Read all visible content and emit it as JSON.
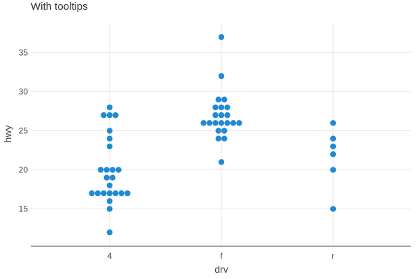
{
  "chart_data": {
    "type": "scatter",
    "title": "With tooltips",
    "xlabel": "drv",
    "ylabel": "hwy",
    "categories": [
      "4",
      "f",
      "r"
    ],
    "ylim": [
      10,
      38
    ],
    "y_ticks": [
      15,
      20,
      25,
      30,
      35
    ],
    "grid": true,
    "point_color": "#1f8ad6",
    "series": [
      {
        "category": "4",
        "y": [
          28,
          27,
          27,
          27,
          25,
          24,
          23,
          20,
          20,
          20,
          20,
          19,
          19,
          18,
          17,
          17,
          17,
          17,
          17,
          17,
          17,
          16,
          15,
          12
        ]
      },
      {
        "category": "f",
        "y": [
          37,
          32,
          29,
          29,
          28,
          28,
          28,
          27,
          27,
          27,
          26,
          26,
          26,
          26,
          26,
          26,
          26,
          25,
          25,
          24,
          24,
          21
        ]
      },
      {
        "category": "r",
        "y": [
          26,
          24,
          23,
          22,
          20,
          15
        ]
      }
    ]
  }
}
